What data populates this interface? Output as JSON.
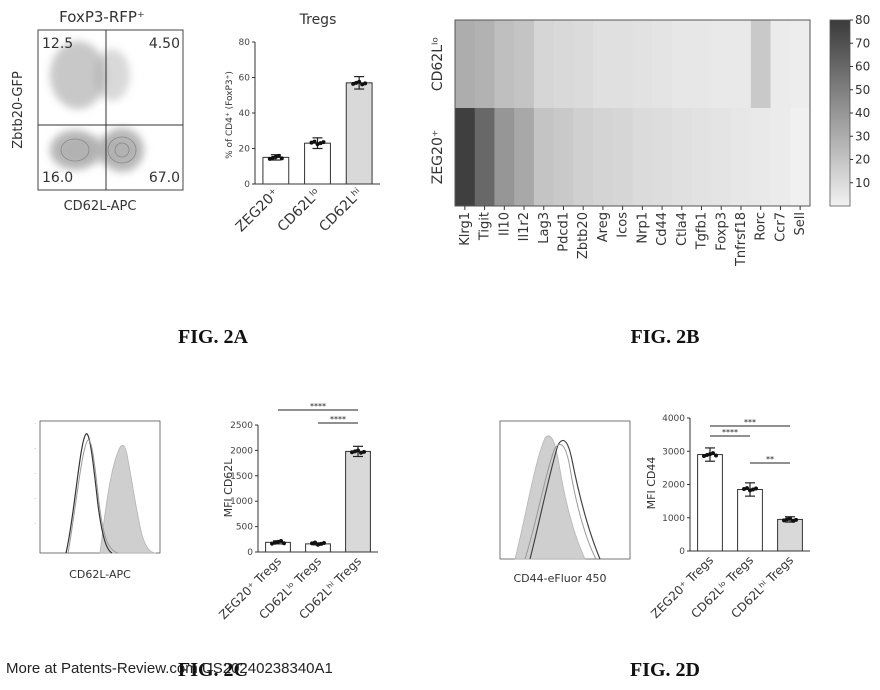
{
  "figure_labels": {
    "a": "FIG. 2A",
    "b": "FIG. 2B",
    "c": "FIG. 2C",
    "d": "FIG. 2D"
  },
  "footer": "More at Patents-Review.com US20240238340A1",
  "fig2a": {
    "flow": {
      "title": "FoxP3-RFP⁺",
      "xlabel": "CD62L-APC",
      "ylabel": "Zbtb20-GFP",
      "quadrants": {
        "ul": "12.5",
        "ur": "4.50",
        "ll": "16.0",
        "lr": "67.0"
      }
    },
    "chart_data": {
      "type": "bar",
      "title": "Tregs",
      "ylabel": "% of CD4⁺ (FoxP3⁺)",
      "categories": [
        "ZEG20⁺",
        "CD62Lˡᵒ",
        "CD62Lʰⁱ"
      ],
      "values": [
        15,
        23,
        57
      ],
      "errors": [
        1.5,
        3,
        3.5
      ],
      "ylim": [
        0,
        80
      ],
      "yticks": [
        "0",
        "20",
        "40",
        "60",
        "80"
      ]
    }
  },
  "fig2b": {
    "chart_data": {
      "type": "heatmap",
      "rows": [
        "CD62Lˡᵒ",
        "ZEG20⁺"
      ],
      "columns": [
        "Klrg1",
        "Tigit",
        "Il10",
        "Il1r2",
        "Lag3",
        "Pdcd1",
        "Zbtb20",
        "Areg",
        "Icos",
        "Nrp1",
        "Cd44",
        "Ctla4",
        "Tgfb1",
        "Foxp3",
        "Tnfrsf18",
        "Rorc",
        "Ccr7",
        "Sell"
      ],
      "values": [
        [
          30,
          28,
          22,
          20,
          12,
          11,
          10,
          8,
          8,
          7,
          6,
          5,
          5,
          4,
          4,
          18,
          3,
          2
        ],
        [
          78,
          60,
          40,
          32,
          20,
          18,
          15,
          13,
          12,
          10,
          9,
          8,
          7,
          6,
          5,
          4,
          3,
          1
        ]
      ],
      "colorbar_ticks": [
        "80",
        "70",
        "60",
        "50",
        "40",
        "30",
        "20",
        "10"
      ],
      "range": [
        0,
        80
      ]
    }
  },
  "fig2c": {
    "histogram": {
      "xlabel": "CD62L-APC"
    },
    "chart_data": {
      "type": "bar",
      "ylabel": "MFI CD62L",
      "categories": [
        "ZEG20⁺ Tregs",
        "CD62Lˡᵒ Tregs",
        "CD62Lʰⁱ Tregs"
      ],
      "values": [
        190,
        160,
        1980
      ],
      "errors": [
        30,
        20,
        100
      ],
      "ylim": [
        0,
        2500
      ],
      "yticks": [
        "0",
        "500",
        "1000",
        "1500",
        "2000",
        "2500"
      ],
      "significance": [
        {
          "from": 0,
          "to": 2,
          "label": "****"
        },
        {
          "from": 1,
          "to": 2,
          "label": "****"
        }
      ]
    }
  },
  "fig2d": {
    "histogram": {
      "xlabel": "CD44-eFluor 450"
    },
    "chart_data": {
      "type": "bar",
      "ylabel": "MFI CD44",
      "categories": [
        "ZEG20⁺ Tregs",
        "CD62Lˡᵒ Tregs",
        "CD62Lʰⁱ Tregs"
      ],
      "values": [
        2900,
        1850,
        950
      ],
      "errors": [
        200,
        200,
        80
      ],
      "ylim": [
        0,
        4000
      ],
      "yticks": [
        "0",
        "1000",
        "2000",
        "3000",
        "4000"
      ],
      "significance": [
        {
          "from": 0,
          "to": 1,
          "label": "****"
        },
        {
          "from": 0,
          "to": 2,
          "label": "***"
        },
        {
          "from": 1,
          "to": 2,
          "label": "**"
        }
      ]
    }
  }
}
